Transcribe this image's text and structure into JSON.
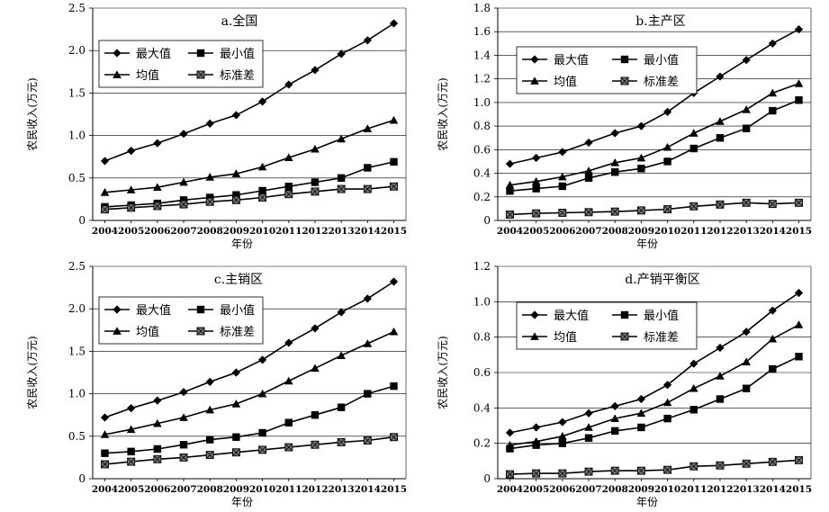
{
  "chart_data": [
    {
      "type": "line",
      "title": "a.全国",
      "xlabel": "年份",
      "ylabel": "农民收入(万元)",
      "x": [
        "2004",
        "2005",
        "2006",
        "2007",
        "2008",
        "2009",
        "2010",
        "2011",
        "2012",
        "2013",
        "2014",
        "2015"
      ],
      "ylim": [
        0,
        2.5
      ],
      "yticks": [
        "0",
        "0.5",
        "1.0",
        "1.5",
        "2.0",
        "2.5"
      ],
      "series": [
        {
          "name": "最大值",
          "marker": "diamond",
          "values": [
            0.7,
            0.82,
            0.91,
            1.02,
            1.14,
            1.24,
            1.4,
            1.6,
            1.77,
            1.96,
            2.12,
            2.32
          ]
        },
        {
          "name": "最小值",
          "marker": "square",
          "values": [
            0.16,
            0.18,
            0.2,
            0.24,
            0.27,
            0.3,
            0.35,
            0.4,
            0.45,
            0.5,
            0.62,
            0.69
          ]
        },
        {
          "name": "均值",
          "marker": "triangle",
          "values": [
            0.33,
            0.36,
            0.39,
            0.45,
            0.51,
            0.55,
            0.63,
            0.74,
            0.84,
            0.96,
            1.08,
            1.18
          ]
        },
        {
          "name": "标准差",
          "marker": "xsquare",
          "values": [
            0.13,
            0.15,
            0.17,
            0.19,
            0.22,
            0.24,
            0.27,
            0.31,
            0.34,
            0.37,
            0.37,
            0.4
          ]
        }
      ]
    },
    {
      "type": "line",
      "title": "b.主产区",
      "xlabel": "年份",
      "ylabel": "农民收入(万元)",
      "x": [
        "2004",
        "2005",
        "2006",
        "2007",
        "2008",
        "2009",
        "2010",
        "2011",
        "2012",
        "2013",
        "2014",
        "2015"
      ],
      "ylim": [
        0,
        1.8
      ],
      "yticks": [
        "0",
        "0.2",
        "0.4",
        "0.6",
        "0.8",
        "1.0",
        "1.2",
        "1.4",
        "1.6",
        "1.8"
      ],
      "series": [
        {
          "name": "最大值",
          "marker": "diamond",
          "values": [
            0.48,
            0.53,
            0.58,
            0.66,
            0.74,
            0.8,
            0.92,
            1.08,
            1.22,
            1.36,
            1.5,
            1.62
          ]
        },
        {
          "name": "最小值",
          "marker": "square",
          "values": [
            0.25,
            0.27,
            0.29,
            0.36,
            0.41,
            0.44,
            0.5,
            0.61,
            0.7,
            0.78,
            0.93,
            1.02
          ]
        },
        {
          "name": "均值",
          "marker": "triangle",
          "values": [
            0.3,
            0.33,
            0.37,
            0.42,
            0.49,
            0.53,
            0.62,
            0.74,
            0.84,
            0.94,
            1.08,
            1.16
          ]
        },
        {
          "name": "标准差",
          "marker": "xsquare",
          "values": [
            0.05,
            0.06,
            0.065,
            0.07,
            0.075,
            0.085,
            0.095,
            0.12,
            0.135,
            0.15,
            0.14,
            0.15
          ]
        }
      ]
    },
    {
      "type": "line",
      "title": "c.主销区",
      "xlabel": "年份",
      "ylabel": "农民收入(万元)",
      "x": [
        "2004",
        "2005",
        "2006",
        "2007",
        "2008",
        "2009",
        "2010",
        "2011",
        "2012",
        "2013",
        "2014",
        "2015"
      ],
      "ylim": [
        0,
        2.5
      ],
      "yticks": [
        "0",
        "0.5",
        "1.0",
        "1.5",
        "2.0",
        "2.5"
      ],
      "series": [
        {
          "name": "最大值",
          "marker": "diamond",
          "values": [
            0.72,
            0.83,
            0.92,
            1.02,
            1.14,
            1.25,
            1.4,
            1.6,
            1.77,
            1.96,
            2.12,
            2.32
          ]
        },
        {
          "name": "最小值",
          "marker": "square",
          "values": [
            0.3,
            0.32,
            0.35,
            0.4,
            0.46,
            0.49,
            0.54,
            0.66,
            0.75,
            0.84,
            1.0,
            1.09
          ]
        },
        {
          "name": "均值",
          "marker": "triangle",
          "values": [
            0.52,
            0.58,
            0.65,
            0.72,
            0.81,
            0.88,
            1.0,
            1.15,
            1.3,
            1.45,
            1.59,
            1.73
          ]
        },
        {
          "name": "标准差",
          "marker": "xsquare",
          "values": [
            0.17,
            0.2,
            0.23,
            0.25,
            0.28,
            0.31,
            0.34,
            0.37,
            0.4,
            0.43,
            0.45,
            0.49
          ]
        }
      ]
    },
    {
      "type": "line",
      "title": "d.产销平衡区",
      "xlabel": "年份",
      "ylabel": "农民收入(万元)",
      "x": [
        "2004",
        "2005",
        "2006",
        "2007",
        "2008",
        "2009",
        "2010",
        "2011",
        "2012",
        "2013",
        "2014",
        "2015"
      ],
      "ylim": [
        0,
        1.2
      ],
      "yticks": [
        "0",
        "0.2",
        "0.4",
        "0.6",
        "0.8",
        "1.0",
        "1.2"
      ],
      "series": [
        {
          "name": "最大值",
          "marker": "diamond",
          "values": [
            0.26,
            0.29,
            0.32,
            0.37,
            0.41,
            0.45,
            0.53,
            0.65,
            0.74,
            0.83,
            0.95,
            1.05
          ]
        },
        {
          "name": "最小值",
          "marker": "square",
          "values": [
            0.17,
            0.19,
            0.2,
            0.23,
            0.27,
            0.29,
            0.34,
            0.39,
            0.45,
            0.51,
            0.62,
            0.69
          ]
        },
        {
          "name": "均值",
          "marker": "triangle",
          "values": [
            0.19,
            0.21,
            0.24,
            0.29,
            0.34,
            0.37,
            0.43,
            0.51,
            0.58,
            0.66,
            0.79,
            0.87
          ]
        },
        {
          "name": "标准差",
          "marker": "xsquare",
          "values": [
            0.025,
            0.03,
            0.03,
            0.04,
            0.045,
            0.045,
            0.05,
            0.07,
            0.075,
            0.085,
            0.095,
            0.105
          ]
        }
      ]
    }
  ]
}
